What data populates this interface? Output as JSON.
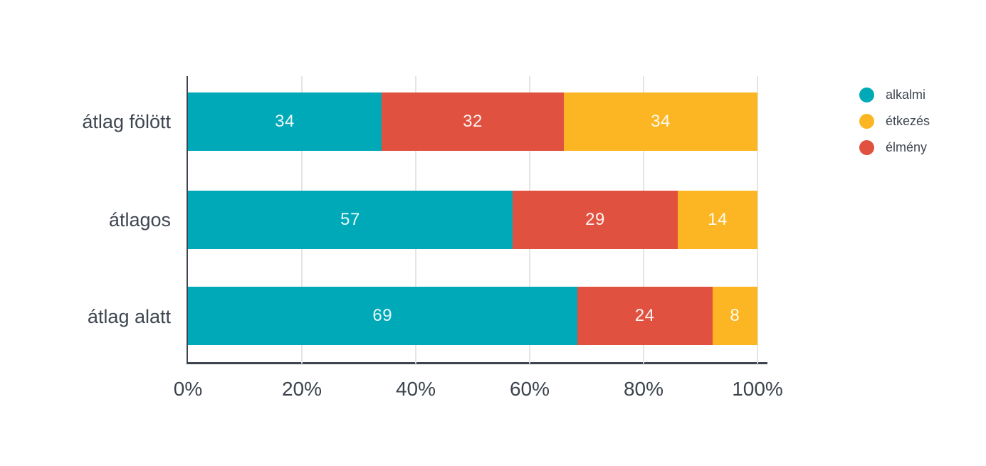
{
  "chart_data": {
    "type": "bar",
    "orientation": "horizontal",
    "stacked": true,
    "unit": "percent",
    "title": "",
    "xlabel": "",
    "ylabel": "",
    "xlim": [
      0,
      100
    ],
    "grid": true,
    "categories": [
      "átlag fölött",
      "átlagos",
      "átlag alatt"
    ],
    "series": [
      {
        "name": "alkalmi",
        "color": "#00A9B7",
        "values": [
          34,
          57,
          69
        ]
      },
      {
        "name": "élmény",
        "color": "#E0513F",
        "values": [
          32,
          29,
          24
        ]
      },
      {
        "name": "étkezés",
        "color": "#FCB623",
        "values": [
          34,
          14,
          8
        ]
      }
    ],
    "legend_position": "top-right",
    "legend": [
      {
        "label": "alkalmi",
        "color": "#00A9B7"
      },
      {
        "label": "étkezés",
        "color": "#FCB623"
      },
      {
        "label": "élmény",
        "color": "#E0513F"
      }
    ],
    "x_ticks": [
      "0%",
      "20%",
      "40%",
      "60%",
      "80%",
      "100%"
    ]
  },
  "colors": {
    "axis": "#3d444d",
    "gridline": "#e4e4e4",
    "category_text": "#3f4650",
    "value_text": "#ffffff",
    "background": "#ffffff"
  }
}
